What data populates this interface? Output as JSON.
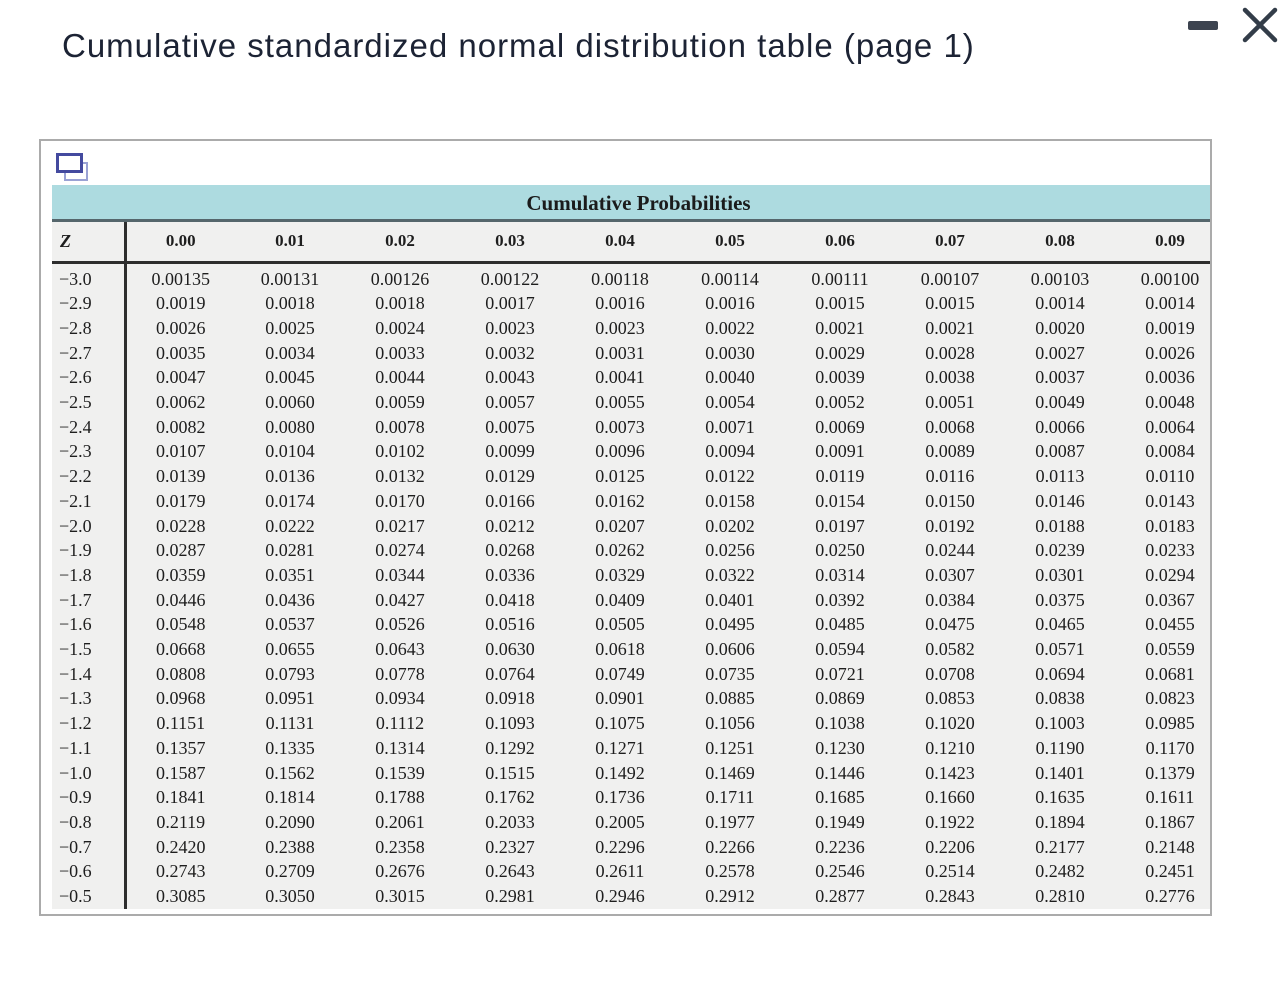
{
  "window": {
    "title": "Cumulative standardized normal distribution table (page 1)",
    "controls": {
      "minimize_label": "minimize",
      "close_label": "close"
    }
  },
  "panel": {
    "icon_name": "overlapping-pages-icon"
  },
  "table": {
    "title": "Cumulative Probabilities",
    "z_label": "Z",
    "column_headers": [
      "0.00",
      "0.01",
      "0.02",
      "0.03",
      "0.04",
      "0.05",
      "0.06",
      "0.07",
      "0.08",
      "0.09"
    ],
    "rows": [
      {
        "z": "−3.0",
        "values": [
          "0.00135",
          "0.00131",
          "0.00126",
          "0.00122",
          "0.00118",
          "0.00114",
          "0.00111",
          "0.00107",
          "0.00103",
          "0.00100"
        ]
      },
      {
        "z": "−2.9",
        "values": [
          "0.0019",
          "0.0018",
          "0.0018",
          "0.0017",
          "0.0016",
          "0.0016",
          "0.0015",
          "0.0015",
          "0.0014",
          "0.0014"
        ]
      },
      {
        "z": "−2.8",
        "values": [
          "0.0026",
          "0.0025",
          "0.0024",
          "0.0023",
          "0.0023",
          "0.0022",
          "0.0021",
          "0.0021",
          "0.0020",
          "0.0019"
        ]
      },
      {
        "z": "−2.7",
        "values": [
          "0.0035",
          "0.0034",
          "0.0033",
          "0.0032",
          "0.0031",
          "0.0030",
          "0.0029",
          "0.0028",
          "0.0027",
          "0.0026"
        ]
      },
      {
        "z": "−2.6",
        "values": [
          "0.0047",
          "0.0045",
          "0.0044",
          "0.0043",
          "0.0041",
          "0.0040",
          "0.0039",
          "0.0038",
          "0.0037",
          "0.0036"
        ]
      },
      {
        "z": "−2.5",
        "values": [
          "0.0062",
          "0.0060",
          "0.0059",
          "0.0057",
          "0.0055",
          "0.0054",
          "0.0052",
          "0.0051",
          "0.0049",
          "0.0048"
        ]
      },
      {
        "z": "−2.4",
        "values": [
          "0.0082",
          "0.0080",
          "0.0078",
          "0.0075",
          "0.0073",
          "0.0071",
          "0.0069",
          "0.0068",
          "0.0066",
          "0.0064"
        ]
      },
      {
        "z": "−2.3",
        "values": [
          "0.0107",
          "0.0104",
          "0.0102",
          "0.0099",
          "0.0096",
          "0.0094",
          "0.0091",
          "0.0089",
          "0.0087",
          "0.0084"
        ]
      },
      {
        "z": "−2.2",
        "values": [
          "0.0139",
          "0.0136",
          "0.0132",
          "0.0129",
          "0.0125",
          "0.0122",
          "0.0119",
          "0.0116",
          "0.0113",
          "0.0110"
        ]
      },
      {
        "z": "−2.1",
        "values": [
          "0.0179",
          "0.0174",
          "0.0170",
          "0.0166",
          "0.0162",
          "0.0158",
          "0.0154",
          "0.0150",
          "0.0146",
          "0.0143"
        ]
      },
      {
        "z": "−2.0",
        "values": [
          "0.0228",
          "0.0222",
          "0.0217",
          "0.0212",
          "0.0207",
          "0.0202",
          "0.0197",
          "0.0192",
          "0.0188",
          "0.0183"
        ]
      },
      {
        "z": "−1.9",
        "values": [
          "0.0287",
          "0.0281",
          "0.0274",
          "0.0268",
          "0.0262",
          "0.0256",
          "0.0250",
          "0.0244",
          "0.0239",
          "0.0233"
        ]
      },
      {
        "z": "−1.8",
        "values": [
          "0.0359",
          "0.0351",
          "0.0344",
          "0.0336",
          "0.0329",
          "0.0322",
          "0.0314",
          "0.0307",
          "0.0301",
          "0.0294"
        ]
      },
      {
        "z": "−1.7",
        "values": [
          "0.0446",
          "0.0436",
          "0.0427",
          "0.0418",
          "0.0409",
          "0.0401",
          "0.0392",
          "0.0384",
          "0.0375",
          "0.0367"
        ]
      },
      {
        "z": "−1.6",
        "values": [
          "0.0548",
          "0.0537",
          "0.0526",
          "0.0516",
          "0.0505",
          "0.0495",
          "0.0485",
          "0.0475",
          "0.0465",
          "0.0455"
        ]
      },
      {
        "z": "−1.5",
        "values": [
          "0.0668",
          "0.0655",
          "0.0643",
          "0.0630",
          "0.0618",
          "0.0606",
          "0.0594",
          "0.0582",
          "0.0571",
          "0.0559"
        ]
      },
      {
        "z": "−1.4",
        "values": [
          "0.0808",
          "0.0793",
          "0.0778",
          "0.0764",
          "0.0749",
          "0.0735",
          "0.0721",
          "0.0708",
          "0.0694",
          "0.0681"
        ]
      },
      {
        "z": "−1.3",
        "values": [
          "0.0968",
          "0.0951",
          "0.0934",
          "0.0918",
          "0.0901",
          "0.0885",
          "0.0869",
          "0.0853",
          "0.0838",
          "0.0823"
        ]
      },
      {
        "z": "−1.2",
        "values": [
          "0.1151",
          "0.1131",
          "0.1112",
          "0.1093",
          "0.1075",
          "0.1056",
          "0.1038",
          "0.1020",
          "0.1003",
          "0.0985"
        ]
      },
      {
        "z": "−1.1",
        "values": [
          "0.1357",
          "0.1335",
          "0.1314",
          "0.1292",
          "0.1271",
          "0.1251",
          "0.1230",
          "0.1210",
          "0.1190",
          "0.1170"
        ]
      },
      {
        "z": "−1.0",
        "values": [
          "0.1587",
          "0.1562",
          "0.1539",
          "0.1515",
          "0.1492",
          "0.1469",
          "0.1446",
          "0.1423",
          "0.1401",
          "0.1379"
        ]
      },
      {
        "z": "−0.9",
        "values": [
          "0.1841",
          "0.1814",
          "0.1788",
          "0.1762",
          "0.1736",
          "0.1711",
          "0.1685",
          "0.1660",
          "0.1635",
          "0.1611"
        ]
      },
      {
        "z": "−0.8",
        "values": [
          "0.2119",
          "0.2090",
          "0.2061",
          "0.2033",
          "0.2005",
          "0.1977",
          "0.1949",
          "0.1922",
          "0.1894",
          "0.1867"
        ]
      },
      {
        "z": "−0.7",
        "values": [
          "0.2420",
          "0.2388",
          "0.2358",
          "0.2327",
          "0.2296",
          "0.2266",
          "0.2236",
          "0.2206",
          "0.2177",
          "0.2148"
        ]
      },
      {
        "z": "−0.6",
        "values": [
          "0.2743",
          "0.2709",
          "0.2676",
          "0.2643",
          "0.2611",
          "0.2578",
          "0.2546",
          "0.2514",
          "0.2482",
          "0.2451"
        ]
      },
      {
        "z": "−0.5",
        "values": [
          "0.3085",
          "0.3050",
          "0.3015",
          "0.2981",
          "0.2946",
          "0.2912",
          "0.2877",
          "0.2843",
          "0.2810",
          "0.2776"
        ]
      }
    ]
  },
  "colors": {
    "title_text": "#1c2334",
    "table_header_bg": "#addbe0",
    "table_bg": "#f0f0ef",
    "rule_dark": "#2d2d2d",
    "rule_teal": "#55666c",
    "panel_border": "#ababab",
    "icon_front": "#444a9f",
    "icon_back": "#9aa2d4",
    "window_control": "#3d4450"
  }
}
